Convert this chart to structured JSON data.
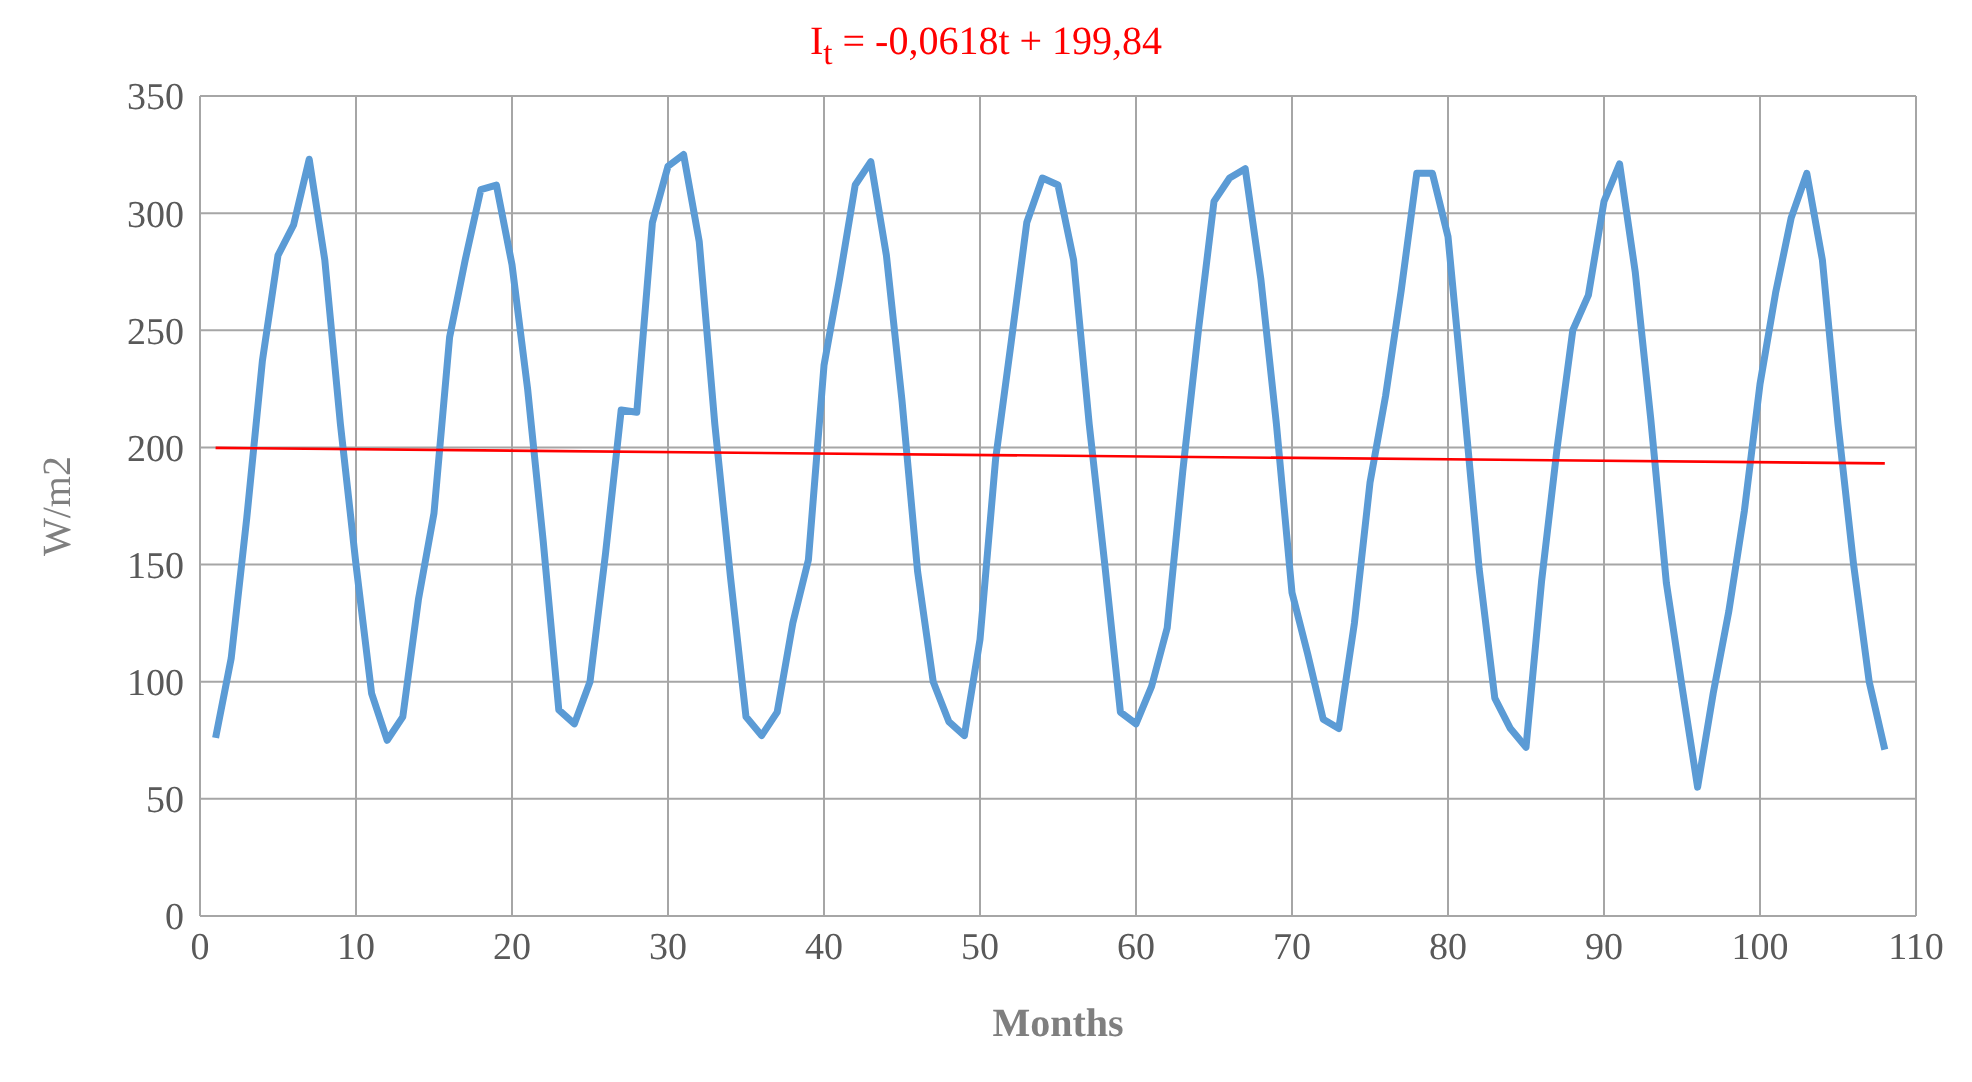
{
  "chart_data": {
    "type": "line",
    "title": "I$_{t}$ = -0,0618t + 199,84",
    "xlabel": "Months",
    "ylabel": "W/m2",
    "x": [
      1,
      2,
      3,
      4,
      5,
      6,
      7,
      8,
      9,
      10,
      11,
      12,
      13,
      14,
      15,
      16,
      17,
      18,
      19,
      20,
      21,
      22,
      23,
      24,
      25,
      26,
      27,
      28,
      29,
      30,
      31,
      32,
      33,
      34,
      35,
      36,
      37,
      38,
      39,
      40,
      41,
      42,
      43,
      44,
      45,
      46,
      47,
      48,
      49,
      50,
      51,
      52,
      53,
      54,
      55,
      56,
      57,
      58,
      59,
      60,
      61,
      62,
      63,
      64,
      65,
      66,
      67,
      68,
      69,
      70,
      71,
      72,
      73,
      74,
      75,
      76,
      77,
      78,
      79,
      80,
      81,
      82,
      83,
      84,
      85,
      86,
      87,
      88,
      89,
      90,
      91,
      92,
      93,
      94,
      95,
      96,
      97,
      98,
      99,
      100,
      101,
      102,
      103,
      104,
      105,
      106,
      107,
      108
    ],
    "series": [
      {
        "color": "#5b9bd5",
        "values": [
          76,
          110,
          170,
          237,
          282,
          295,
          323,
          280,
          210,
          150,
          95,
          75,
          85,
          135,
          172,
          247,
          280,
          310,
          312,
          278,
          225,
          160,
          88,
          82,
          100,
          155,
          216,
          215,
          296,
          320,
          325,
          288,
          210,
          145,
          85,
          77,
          87,
          125,
          152,
          235,
          272,
          312,
          322,
          282,
          220,
          147,
          100,
          83,
          77,
          118,
          195,
          245,
          296,
          315,
          312,
          280,
          210,
          150,
          87,
          82,
          98,
          123,
          190,
          250,
          305,
          315,
          319,
          272,
          210,
          138,
          112,
          84,
          80,
          125,
          185,
          222,
          267,
          317,
          317,
          290,
          220,
          148,
          93,
          80,
          72,
          143,
          200,
          250,
          265,
          305,
          321,
          275,
          212,
          142,
          98,
          55,
          95,
          130,
          173,
          227,
          266,
          298,
          317,
          280,
          210,
          150,
          100,
          71
        ]
      },
      {
        "type": "line",
        "color": "#ff0000",
        "x": [
          1,
          108
        ],
        "values": [
          199.8,
          193.2
        ]
      }
    ],
    "xlim": [
      0,
      110
    ],
    "xticks": [
      0,
      10,
      20,
      30,
      40,
      50,
      60,
      70,
      80,
      90,
      100,
      110
    ],
    "ylim": [
      0,
      350
    ],
    "yticks": [
      0,
      50,
      100,
      150,
      200,
      250,
      300,
      350
    ],
    "grid": true,
    "legend": false,
    "marker": "none",
    "line_style": "solid"
  }
}
